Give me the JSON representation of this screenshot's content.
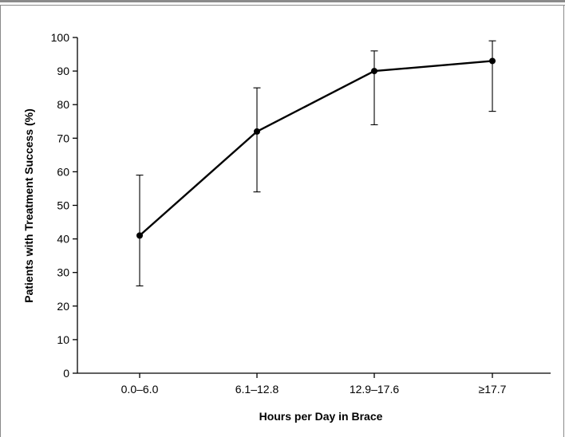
{
  "chart_data": {
    "type": "line",
    "title": "",
    "xlabel": "Hours per Day in Brace",
    "ylabel": "Patients with Treatment Success (%)",
    "categories": [
      "0.0–6.0",
      "6.1–12.8",
      "12.9–17.6",
      "≥17.7"
    ],
    "values": [
      41,
      72,
      90,
      93
    ],
    "error_low": [
      26,
      54,
      74,
      78
    ],
    "error_high": [
      59,
      85,
      96,
      99
    ],
    "ylim": [
      0,
      100
    ],
    "yticks": [
      0,
      10,
      20,
      30,
      40,
      50,
      60,
      70,
      80,
      90,
      100
    ],
    "grid": false,
    "legend": "none"
  }
}
